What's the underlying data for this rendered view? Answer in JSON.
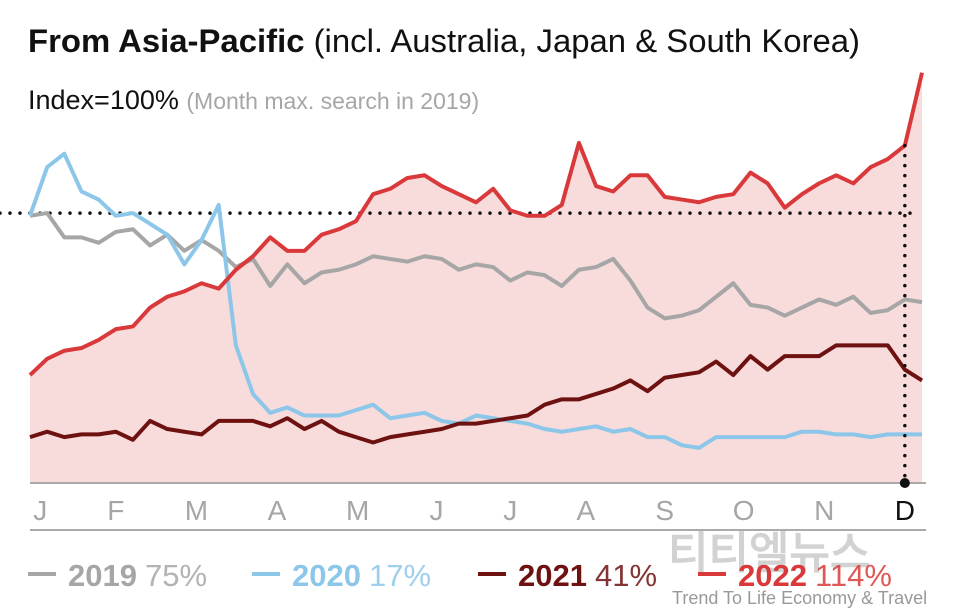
{
  "chart_data": {
    "type": "line",
    "title": {
      "main": "From Asia-Pacific",
      "rest": "(incl. Australia, Japan & South Korea)"
    },
    "subtitle": {
      "main": "Index=100%",
      "rest": "(Month max. search in 2019)"
    },
    "reference_line": 100,
    "xlim": [
      0,
      52
    ],
    "xticks": [
      {
        "value": 0.6,
        "label": "J"
      },
      {
        "value": 5,
        "label": "F"
      },
      {
        "value": 9.7,
        "label": "M"
      },
      {
        "value": 14.4,
        "label": "A"
      },
      {
        "value": 19.1,
        "label": "M"
      },
      {
        "value": 23.7,
        "label": "J"
      },
      {
        "value": 28,
        "label": "J"
      },
      {
        "value": 32.4,
        "label": "A"
      },
      {
        "value": 37,
        "label": "S"
      },
      {
        "value": 41.6,
        "label": "O"
      },
      {
        "value": 46.3,
        "label": "N"
      },
      {
        "value": 51,
        "label": "D"
      }
    ],
    "ylim": [
      0,
      153
    ],
    "series": [
      {
        "name": "2019",
        "label": "75%",
        "color": "#a6a6a6",
        "values": [
          99,
          100,
          91,
          91,
          89,
          93,
          94,
          88,
          92,
          86,
          90,
          86,
          80,
          83,
          73,
          81,
          74,
          78,
          79,
          81,
          84,
          83,
          82,
          84,
          83,
          79,
          81,
          80,
          75,
          78,
          77,
          73,
          79,
          80,
          83,
          75,
          65,
          61,
          62,
          64,
          69,
          74,
          66,
          65,
          62,
          65,
          68,
          66,
          69,
          63,
          64,
          68,
          67
        ]
      },
      {
        "name": "2020",
        "label": "17%",
        "color": "#8cc7ea",
        "values": [
          99,
          117,
          122,
          108,
          105,
          99,
          100,
          96,
          92,
          81,
          90,
          103,
          51,
          33,
          26,
          28,
          25,
          25,
          25,
          27,
          29,
          24,
          25,
          26,
          23,
          22,
          25,
          24,
          23,
          22,
          20,
          19,
          20,
          21,
          19,
          20,
          17,
          17,
          14,
          13,
          17,
          17,
          17,
          17,
          17,
          19,
          19,
          18,
          18,
          17,
          18,
          18,
          18
        ]
      },
      {
        "name": "2021",
        "label": "41%",
        "color": "#6e1111",
        "values": [
          17,
          19,
          17,
          18,
          18,
          19,
          16,
          23,
          20,
          19,
          18,
          23,
          23,
          23,
          21,
          24,
          20,
          23,
          19,
          17,
          15,
          17,
          18,
          19,
          20,
          22,
          22,
          23,
          24,
          25,
          29,
          31,
          31,
          33,
          35,
          38,
          34,
          39,
          40,
          41,
          45,
          40,
          47,
          42,
          47,
          47,
          47,
          51,
          51,
          51,
          51,
          42,
          38
        ]
      },
      {
        "name": "2022",
        "label": "114%",
        "color": "#d9393a",
        "area": true,
        "values": [
          40,
          46,
          49,
          50,
          53,
          57,
          58,
          65,
          69,
          71,
          74,
          72,
          79,
          84,
          91,
          86,
          86,
          92,
          94,
          97,
          107,
          109,
          113,
          114,
          110,
          107,
          104,
          109,
          101,
          99,
          99,
          103,
          126,
          110,
          108,
          114,
          114,
          106,
          105,
          104,
          106,
          107,
          115,
          111,
          102,
          107,
          111,
          114,
          111,
          117,
          120,
          125,
          152
        ]
      }
    ],
    "watermark": {
      "name": "티티엘뉴스",
      "tagline": "Trend To Life Economy & Travel"
    }
  }
}
